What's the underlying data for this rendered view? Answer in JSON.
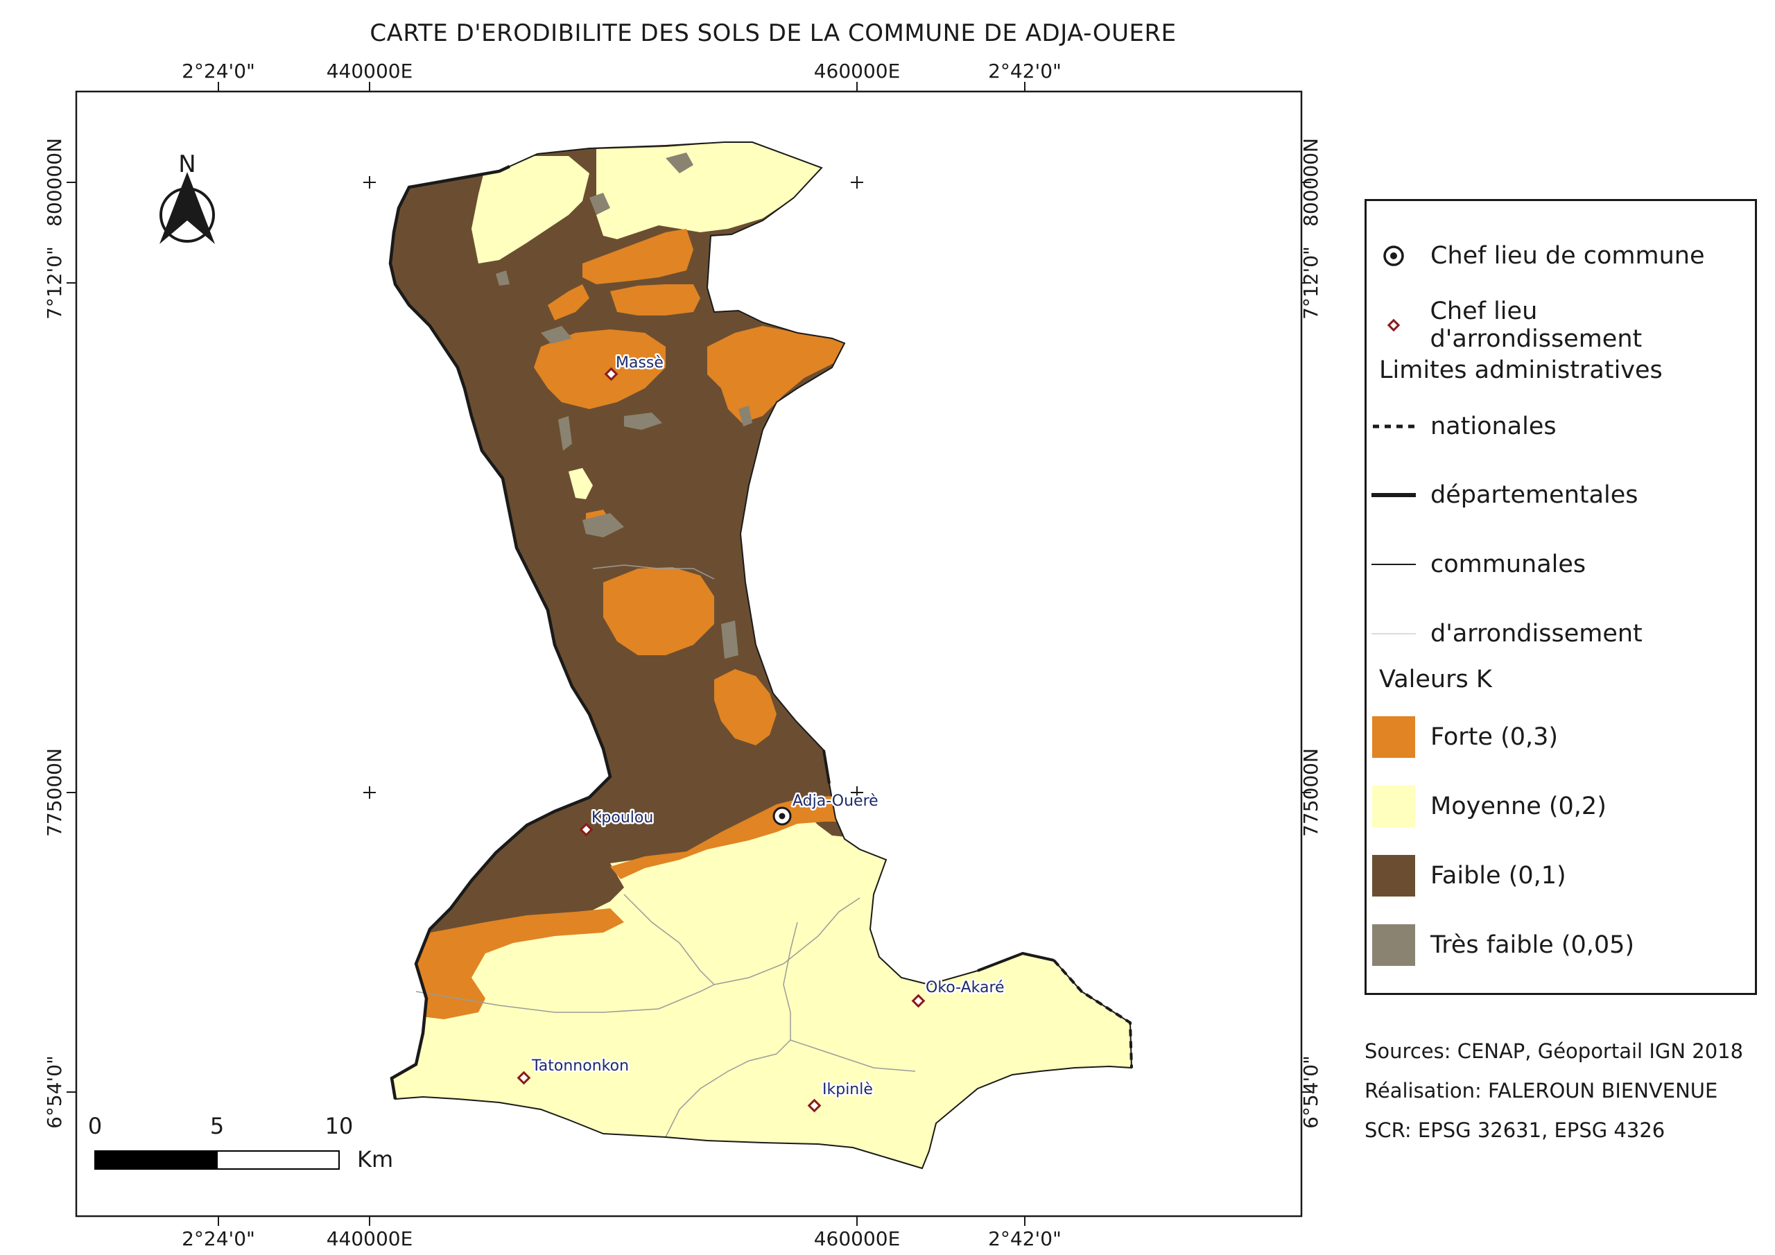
{
  "title": "CARTE D'ERODIBILITE DES SOLS  DE LA COMMUNE DE ADJA-OUERE",
  "colors": {
    "forte": "#e08424",
    "moyenne": "#ffffbe",
    "faible": "#6b4e31",
    "tres_faible": "#8a8372",
    "marker": "#8b1a1a"
  },
  "graticule": {
    "top": [
      "2°24'0\"",
      "440000E",
      "460000E",
      "2°42'0\""
    ],
    "bottom": [
      "2°24'0\"",
      "440000E",
      "460000E",
      "2°42'0\""
    ],
    "left": [
      "800000N",
      "7°12'0\"",
      "775000N",
      "6°54'0\""
    ],
    "right": [
      "800000N",
      "7°12'0\"",
      "775000N",
      "6°54'0\""
    ]
  },
  "north_arrow": {
    "label": "N",
    "icon": "north-arrow-icon"
  },
  "scale_bar": {
    "ticks": [
      "0",
      "5",
      "10"
    ],
    "unit": "Km"
  },
  "places": {
    "masse": "Massè",
    "kpoulou": "Kpoulou",
    "adja_ouere": "Adja-Ouerè",
    "oko_akare": "Oko-Akaré",
    "tatonnonkon": "Tatonnonkon",
    "ikpinle": "Ikpinlè"
  },
  "legend": {
    "chef_commune": "Chef lieu de commune",
    "chef_arrondissement": "Chef lieu d'arrondissement",
    "limites_title": "Limites administratives",
    "nationales": "nationales",
    "departementales": "départementales",
    "communales": "communales",
    "arrondissement": "d'arrondissement",
    "valeurs_title": "Valeurs K",
    "forte": "Forte (0,3)",
    "moyenne": "Moyenne (0,2)",
    "faible": "Faible (0,1)",
    "tres_faible": "Très faible (0,05)"
  },
  "credits": {
    "sources": "Sources: CENAP, Géoportail IGN 2018",
    "realisation": "Réalisation: FALEROUN BIENVENUE",
    "scr": "SCR: EPSG 32631, EPSG 4326"
  }
}
